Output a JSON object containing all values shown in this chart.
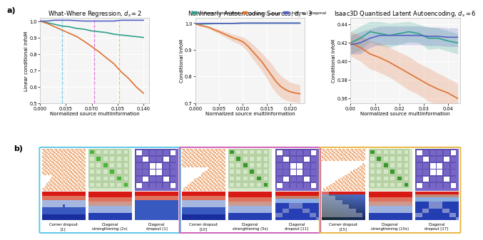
{
  "plot1": {
    "title": "What-Where Regression, $d_s = 2$",
    "xlabel": "Normalized source multiinformation",
    "ylabel": "Linear conditional InfoM",
    "xlim": [
      0.0,
      0.148
    ],
    "ylim": [
      0.5,
      1.02
    ],
    "xticks": [
      0.0,
      0.035,
      0.07,
      0.105,
      0.14
    ],
    "yticks": [
      0.5,
      0.6,
      0.7,
      0.8,
      0.9,
      1.0
    ],
    "vlines": [
      0.03,
      0.073,
      0.107
    ],
    "vline_colors": [
      "#5ec8e8",
      "#e060d0",
      "#e8c040"
    ],
    "lines": {
      "correlated": {
        "x": [
          0.0,
          0.01,
          0.02,
          0.03,
          0.04,
          0.05,
          0.06,
          0.07,
          0.08,
          0.09,
          0.1,
          0.11,
          0.12,
          0.13,
          0.14
        ],
        "y": [
          1.0,
          0.99,
          0.98,
          0.97,
          0.965,
          0.955,
          0.95,
          0.94,
          0.935,
          0.93,
          0.92,
          0.915,
          0.91,
          0.905,
          0.9
        ],
        "color": "#2ca089"
      },
      "corner": {
        "x": [
          0.0,
          0.01,
          0.02,
          0.03,
          0.04,
          0.05,
          0.06,
          0.07,
          0.08,
          0.09,
          0.1,
          0.11,
          0.12,
          0.13,
          0.14
        ],
        "y": [
          1.0,
          0.985,
          0.965,
          0.945,
          0.925,
          0.905,
          0.876,
          0.845,
          0.812,
          0.775,
          0.74,
          0.69,
          0.65,
          0.6,
          0.56
        ],
        "color": "#e07030"
      },
      "diagonal": {
        "x": [
          0.0,
          0.01,
          0.02,
          0.03,
          0.04,
          0.05,
          0.06,
          0.07,
          0.08,
          0.09,
          0.1,
          0.11,
          0.12,
          0.13,
          0.14
        ],
        "y": [
          1.0,
          1.0,
          1.005,
          1.005,
          1.005,
          1.002,
          1.0,
          1.0,
          1.0,
          1.0,
          1.0,
          1.005,
          1.005,
          1.005,
          1.005
        ],
        "color": "#5560c0"
      }
    }
  },
  "plot2": {
    "title": "Nonlinearly Autoencoding Sources, $d_s = 3$",
    "xlabel": "Normalized source multiinformation",
    "ylabel": "Conditional InfoM",
    "xlim": [
      0.0,
      0.023
    ],
    "ylim": [
      0.7,
      1.02
    ],
    "xticks": [
      0.0,
      0.005,
      0.01,
      0.015,
      0.02
    ],
    "yticks": [
      0.7,
      0.8,
      0.9,
      1.0
    ],
    "lines": {
      "correlated": {
        "x": [
          0.0,
          0.002,
          0.004,
          0.006,
          0.008,
          0.01,
          0.012,
          0.014,
          0.016,
          0.018,
          0.02,
          0.022
        ],
        "y": [
          0.995,
          0.997,
          0.998,
          0.999,
          0.999,
          1.0,
          1.0,
          1.0,
          1.0,
          1.0,
          1.0,
          1.0
        ],
        "color": "#2ca089"
      },
      "corner": {
        "x": [
          0.0,
          0.001,
          0.002,
          0.003,
          0.004,
          0.005,
          0.006,
          0.007,
          0.008,
          0.009,
          0.01,
          0.011,
          0.012,
          0.013,
          0.014,
          0.015,
          0.016,
          0.017,
          0.018,
          0.019,
          0.02,
          0.021,
          0.022
        ],
        "y": [
          0.998,
          0.992,
          0.988,
          0.983,
          0.975,
          0.968,
          0.96,
          0.952,
          0.944,
          0.938,
          0.93,
          0.915,
          0.895,
          0.875,
          0.855,
          0.83,
          0.805,
          0.78,
          0.762,
          0.75,
          0.742,
          0.738,
          0.735
        ],
        "y_upper": [
          0.999,
          0.995,
          0.992,
          0.988,
          0.982,
          0.976,
          0.97,
          0.963,
          0.958,
          0.953,
          0.948,
          0.937,
          0.922,
          0.905,
          0.888,
          0.868,
          0.848,
          0.822,
          0.803,
          0.789,
          0.778,
          0.773,
          0.769
        ],
        "y_lower": [
          0.997,
          0.989,
          0.984,
          0.978,
          0.968,
          0.96,
          0.95,
          0.941,
          0.93,
          0.923,
          0.912,
          0.893,
          0.868,
          0.845,
          0.822,
          0.792,
          0.762,
          0.738,
          0.721,
          0.711,
          0.706,
          0.703,
          0.701
        ],
        "color": "#e07030"
      },
      "diagonal": {
        "x": [
          0.0,
          0.002,
          0.004,
          0.006,
          0.008,
          0.01,
          0.012,
          0.014,
          0.016,
          0.018,
          0.02,
          0.022
        ],
        "y": [
          0.998,
          0.999,
          0.999,
          0.999,
          0.999,
          1.0,
          1.0,
          1.0,
          1.0,
          1.0,
          1.0,
          1.0
        ],
        "color": "#5560c0"
      }
    }
  },
  "plot3": {
    "title": "Isaac3D Quantised Latent Autoencoding, $d_s = 6$",
    "xlabel": "Normalized source multiinformation",
    "ylabel": "Conditional InfoM",
    "xlim": [
      0.0,
      0.045
    ],
    "ylim": [
      0.355,
      0.447
    ],
    "xticks": [
      0.0,
      0.01,
      0.02,
      0.03,
      0.04
    ],
    "yticks": [
      0.36,
      0.38,
      0.4,
      0.42,
      0.44
    ],
    "lines": {
      "correlated": {
        "x": [
          0.0,
          0.004,
          0.008,
          0.012,
          0.016,
          0.02,
          0.024,
          0.028,
          0.032,
          0.036,
          0.04,
          0.044
        ],
        "y": [
          0.42,
          0.425,
          0.432,
          0.43,
          0.428,
          0.43,
          0.432,
          0.43,
          0.425,
          0.425,
          0.422,
          0.42
        ],
        "y_upper": [
          0.432,
          0.438,
          0.443,
          0.443,
          0.441,
          0.442,
          0.443,
          0.44,
          0.437,
          0.436,
          0.433,
          0.43
        ],
        "y_lower": [
          0.408,
          0.412,
          0.421,
          0.417,
          0.415,
          0.418,
          0.421,
          0.42,
          0.413,
          0.414,
          0.411,
          0.408
        ],
        "color": "#2ca089"
      },
      "corner": {
        "x": [
          0.0,
          0.004,
          0.008,
          0.012,
          0.016,
          0.02,
          0.024,
          0.028,
          0.032,
          0.036,
          0.04,
          0.044
        ],
        "y": [
          0.42,
          0.415,
          0.408,
          0.404,
          0.399,
          0.393,
          0.387,
          0.381,
          0.375,
          0.37,
          0.366,
          0.36
        ],
        "y_upper": [
          0.432,
          0.428,
          0.422,
          0.42,
          0.415,
          0.41,
          0.405,
          0.398,
          0.393,
          0.387,
          0.382,
          0.376
        ],
        "y_lower": [
          0.406,
          0.4,
          0.392,
          0.388,
          0.383,
          0.376,
          0.369,
          0.364,
          0.357,
          0.353,
          0.35,
          0.344
        ],
        "color": "#e07030"
      },
      "diagonal": {
        "x": [
          0.0,
          0.004,
          0.008,
          0.012,
          0.016,
          0.02,
          0.024,
          0.028,
          0.032,
          0.036,
          0.04,
          0.044
        ],
        "y": [
          0.418,
          0.42,
          0.425,
          0.428,
          0.428,
          0.428,
          0.428,
          0.428,
          0.427,
          0.427,
          0.426,
          0.426
        ],
        "y_upper": [
          0.428,
          0.432,
          0.435,
          0.438,
          0.438,
          0.438,
          0.438,
          0.438,
          0.437,
          0.437,
          0.436,
          0.436
        ],
        "y_lower": [
          0.408,
          0.408,
          0.415,
          0.418,
          0.418,
          0.418,
          0.418,
          0.418,
          0.417,
          0.417,
          0.416,
          0.416
        ],
        "color": "#5560c0"
      }
    }
  },
  "legend": {
    "labels": [
      "Uniform ∪ correlated",
      "Uniform \\ corner",
      "Uniform \\ diagonal"
    ],
    "colors": [
      "#2ca089",
      "#e07030",
      "#5560c0"
    ]
  },
  "border_colors": [
    "#5ec8e8",
    "#d060b8",
    "#e8b840"
  ],
  "all_labels": [
    [
      "Corner dropout\n[1]",
      "Diagonal\nstrengthening (2x)",
      "Diagonal\ndropout [1]"
    ],
    [
      "Corner dropout\n[10]",
      "Diagonal\nstrengthening (5x)",
      "Diagonal\ndropout [11]"
    ],
    [
      "Corner dropout\n[15]",
      "Diagonal\nstrengthening (10x)",
      "Diagonal\ndropout [17]"
    ]
  ]
}
